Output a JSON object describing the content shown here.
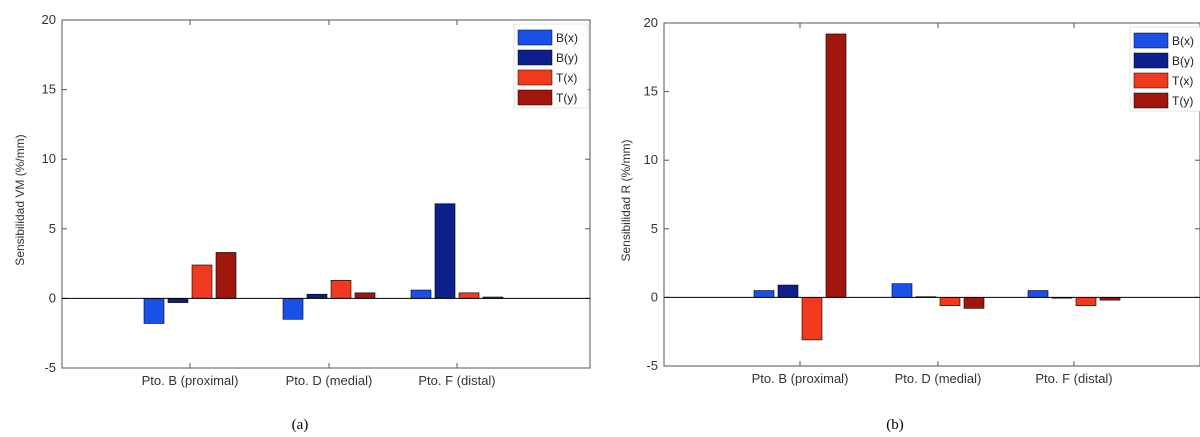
{
  "chart_data": [
    {
      "type": "bar",
      "categories": [
        "Pto. B (proximal)",
        "Pto. D (medial)",
        "Pto. F (distal)"
      ],
      "series": [
        {
          "name": "B(x)",
          "values": [
            -1.8,
            -1.5,
            0.6
          ]
        },
        {
          "name": "B(y)",
          "values": [
            -0.3,
            0.3,
            6.8
          ]
        },
        {
          "name": "T(x)",
          "values": [
            2.4,
            1.3,
            0.4
          ]
        },
        {
          "name": "T(y)",
          "values": [
            3.3,
            0.4,
            0.1
          ]
        }
      ],
      "ylabel": "Sensibilidad VM (%/mm)",
      "ylim": [
        -5,
        20
      ],
      "yticks": [
        "-5",
        "0",
        "5",
        "10",
        "15",
        "20"
      ],
      "legend_position": "top-right",
      "grid": false,
      "caption": "(a)"
    },
    {
      "type": "bar",
      "categories": [
        "Pto. B (proximal)",
        "Pto. D (medial)",
        "Pto. F (distal)"
      ],
      "series": [
        {
          "name": "B(x)",
          "values": [
            0.5,
            1.0,
            0.5
          ]
        },
        {
          "name": "B(y)",
          "values": [
            0.9,
            0.05,
            0.0
          ]
        },
        {
          "name": "T(x)",
          "values": [
            -3.1,
            -0.6,
            -0.6
          ]
        },
        {
          "name": "T(y)",
          "values": [
            19.2,
            -0.8,
            -0.2
          ]
        }
      ],
      "ylabel": "Sensibilidad R (%/mm)",
      "ylim": [
        -5,
        20
      ],
      "yticks": [
        "-5",
        "0",
        "5",
        "10",
        "15",
        "20"
      ],
      "legend_position": "top-right",
      "grid": false,
      "caption": "(b)"
    }
  ],
  "colors": {
    "B(x)": "#1a4fe8",
    "B(y)": "#0c1f8c",
    "T(x)": "#f03a1e",
    "T(y)": "#a0160c",
    "zero_line": "#000000",
    "axes": "#555555"
  }
}
